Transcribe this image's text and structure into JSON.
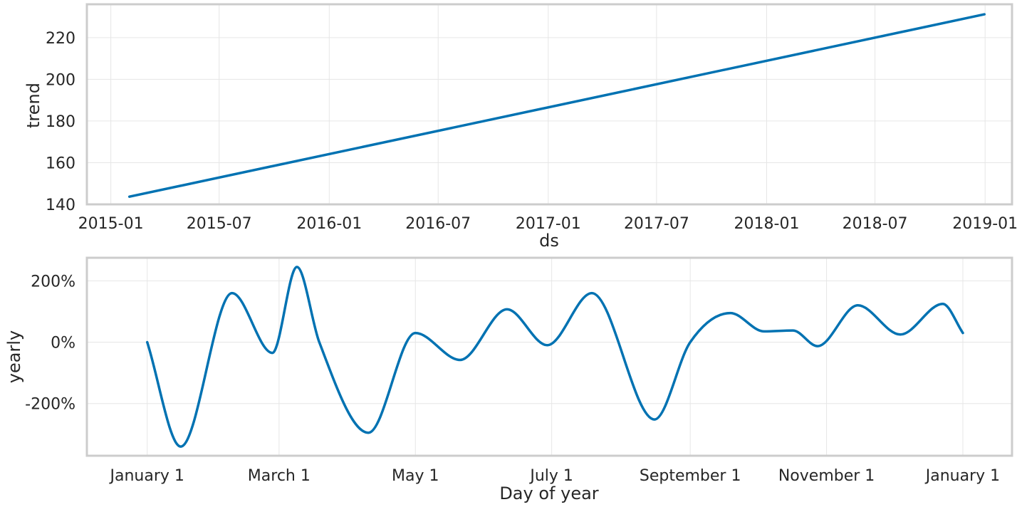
{
  "chart_data": [
    {
      "type": "line",
      "xlabel": "ds",
      "ylabel": "trend",
      "x_axis": "date",
      "xlim": [
        "2014-11-22",
        "2019-02-15"
      ],
      "ylim": [
        140,
        236
      ],
      "grid": true,
      "x_ticks": [
        "2015-01",
        "2015-07",
        "2016-01",
        "2016-07",
        "2017-01",
        "2017-07",
        "2018-01",
        "2018-07",
        "2019-01"
      ],
      "y_ticks": [
        140,
        160,
        180,
        200,
        220
      ],
      "y_tick_labels": [
        "140",
        "160",
        "180",
        "200",
        "220"
      ],
      "series": [
        {
          "color": "#0072B2",
          "x": [
            "2015-02-01",
            "2018-12-31"
          ],
          "values": [
            143.7,
            231.2
          ]
        }
      ]
    },
    {
      "type": "line",
      "xlabel": "Day of year",
      "ylabel": "yearly",
      "x_axis": "day of year",
      "xlim": [
        -27,
        387
      ],
      "ylim": [
        -370,
        275
      ],
      "grid": true,
      "x_ticks": [
        0,
        59,
        120,
        181,
        243,
        304,
        365
      ],
      "x_tick_labels": [
        "January 1",
        "March 1",
        "May 1",
        "July 1",
        "September 1",
        "November 1",
        "January 1"
      ],
      "y_ticks": [
        -200,
        0,
        200
      ],
      "y_tick_labels": [
        "-200%",
        "0%",
        "200%"
      ],
      "series": [
        {
          "color": "#0072B2",
          "x": [
            0,
            15,
            38,
            56,
            67,
            77,
            99,
            120,
            140,
            161,
            179,
            199,
            227,
            243,
            261,
            276,
            289,
            300,
            318,
            337,
            356,
            365
          ],
          "values": [
            0,
            -340,
            160,
            -35,
            245,
            0,
            -295,
            30,
            -58,
            107,
            -10,
            160,
            -252,
            0,
            95,
            35,
            38,
            -13,
            120,
            25,
            125,
            30
          ]
        }
      ]
    }
  ]
}
